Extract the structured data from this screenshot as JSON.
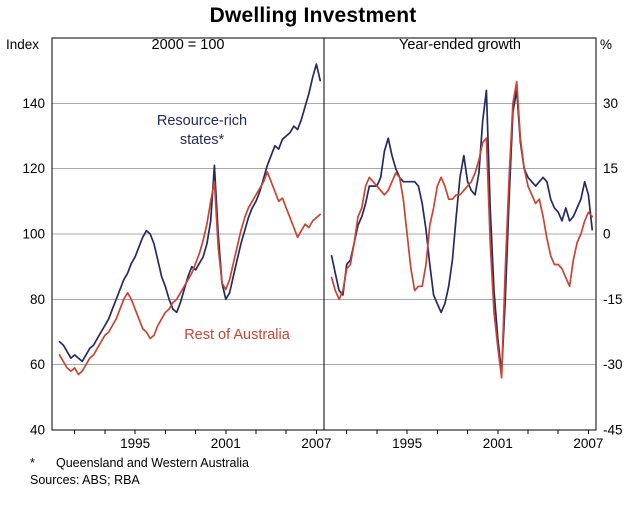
{
  "title": "Dwelling Investment",
  "footnote": {
    "marker": "*",
    "text": "Queensland and Western Australia"
  },
  "sources": "Sources: ABS; RBA",
  "chart_data": {
    "type": "line",
    "grid": true,
    "grid_color": "#a9a9a9",
    "frame_color": "#000000",
    "panels": [
      {
        "id": "index-panel",
        "subtitle": "2000 = 100",
        "unit_label": "Index",
        "unit_side": "left",
        "ylim": [
          40,
          160
        ],
        "yticks": [
          40,
          60,
          80,
          100,
          120,
          140
        ],
        "xlim": [
          1989.5,
          2007.5
        ],
        "xticks": [
          1995,
          2001,
          2007
        ],
        "xticks_minor": [
          1991,
          1993,
          1995,
          1997,
          1999,
          2001,
          2003,
          2005,
          2007
        ],
        "x_start": 1990,
        "x_step": 0.25,
        "series": [
          {
            "name": "Resource-rich states*",
            "label_lines": [
              "Resource-rich",
              "states*"
            ],
            "color": "#252a63",
            "values": [
              67,
              66,
              64,
              62,
              63,
              62,
              61,
              63,
              65,
              66,
              68,
              70,
              72,
              74,
              77,
              80,
              83,
              86,
              88,
              91,
              93,
              96,
              99,
              101,
              100,
              97,
              92,
              87,
              84,
              80,
              77,
              76,
              79,
              83,
              87,
              90,
              89,
              91,
              93,
              97,
              104,
              121,
              100,
              85,
              80,
              82,
              87,
              92,
              97,
              101,
              105,
              108,
              110,
              113,
              117,
              121,
              124,
              127,
              126,
              129,
              130,
              131,
              133,
              132,
              135,
              139,
              143,
              148,
              152,
              147
            ]
          },
          {
            "name": "Rest of Australia",
            "label_lines": [
              "Rest of Australia"
            ],
            "color": "#cb4331",
            "values": [
              63,
              61,
              59,
              58,
              59,
              57,
              58,
              60,
              62,
              63,
              65,
              67,
              69,
              70,
              72,
              74,
              77,
              80,
              82,
              80,
              77,
              74,
              71,
              70,
              68,
              69,
              72,
              74,
              76,
              77,
              79,
              80,
              82,
              84,
              86,
              88,
              91,
              94,
              98,
              103,
              110,
              116,
              96,
              85,
              83,
              86,
              91,
              96,
              101,
              105,
              108,
              110,
              112,
              114,
              116,
              119,
              116,
              113,
              110,
              111,
              108,
              105,
              102,
              99,
              101,
              103,
              102,
              104,
              105,
              106
            ]
          }
        ]
      },
      {
        "id": "growth-panel",
        "subtitle": "Year-ended growth",
        "unit_label": "%",
        "unit_side": "right",
        "ylim": [
          -45,
          45
        ],
        "yticks": [
          -45,
          -30,
          -15,
          0,
          15,
          30
        ],
        "xlim": [
          1989.5,
          2007.5
        ],
        "xticks": [
          1995,
          2001,
          2007
        ],
        "xticks_minor": [
          1991,
          1993,
          1995,
          1997,
          1999,
          2001,
          2003,
          2005,
          2007
        ],
        "x_start": 1990,
        "x_step": 0.25,
        "series": [
          {
            "name": "Resource-rich states* year-ended growth",
            "color": "#252a63",
            "values": [
              -5,
              -9,
              -13,
              -14,
              -7,
              -6,
              -2,
              2,
              4,
              7,
              11,
              11,
              11,
              13,
              19,
              22,
              18,
              15,
              13,
              12,
              12,
              12,
              12,
              11,
              7,
              1,
              -7,
              -14,
              -16,
              -18,
              -16,
              -12,
              -6,
              4,
              13,
              18,
              12,
              10,
              9,
              14,
              26,
              33,
              6,
              -13,
              -24,
              -32,
              -15,
              8,
              28,
              33,
              21,
              15,
              13,
              12,
              11,
              12,
              13,
              12,
              8,
              6,
              5,
              3,
              6,
              3,
              4,
              6,
              8,
              12,
              9,
              1
            ]
          },
          {
            "name": "Rest of Australia year-ended growth",
            "color": "#cb4331",
            "values": [
              -10,
              -13,
              -15,
              -13,
              -8,
              -7,
              -2,
              4,
              6,
              11,
              13,
              12,
              11,
              10,
              9,
              10,
              12,
              14,
              13,
              8,
              0,
              -8,
              -13,
              -12,
              -12,
              -7,
              2,
              6,
              11,
              13,
              11,
              8,
              8,
              9,
              9,
              10,
              11,
              12,
              14,
              17,
              21,
              22,
              -2,
              -18,
              -26,
              -33,
              -8,
              13,
              30,
              35,
              22,
              15,
              11,
              9,
              7,
              8,
              4,
              -1,
              -5,
              -7,
              -7,
              -8,
              -10,
              -12,
              -6,
              -2,
              0,
              3,
              5,
              4
            ]
          }
        ]
      }
    ]
  }
}
